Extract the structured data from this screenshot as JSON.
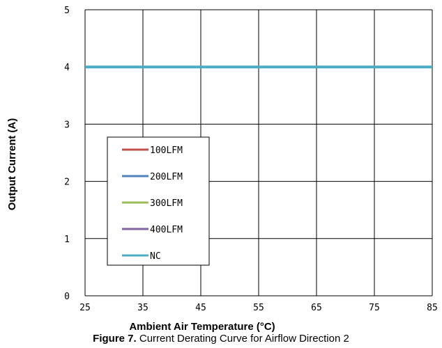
{
  "chart_data": {
    "type": "line",
    "xlabel": "Ambient Air Temperature (°C)",
    "ylabel": "Output Current (A)",
    "xlim": [
      25,
      85
    ],
    "ylim": [
      0,
      5
    ],
    "x_ticks": [
      "25",
      "35",
      "45",
      "55",
      "65",
      "75",
      "85"
    ],
    "y_ticks": [
      "0",
      "1",
      "2",
      "3",
      "4",
      "5"
    ],
    "grid": true,
    "legend_position": "left",
    "series": [
      {
        "name": "100LFM",
        "color": "#c0504d",
        "x": [],
        "y": []
      },
      {
        "name": "200LFM",
        "color": "#4f81bd",
        "x": [],
        "y": []
      },
      {
        "name": "300LFM",
        "color": "#9bbb59",
        "x": [],
        "y": []
      },
      {
        "name": "400LFM",
        "color": "#8064a2",
        "x": [],
        "y": []
      },
      {
        "name": "NC",
        "color": "#4bacc6",
        "x": [
          25,
          85
        ],
        "y": [
          4,
          4
        ]
      }
    ]
  },
  "caption": {
    "label": "Figure 7.",
    "text": " Current Derating Curve for Airflow Direction 2"
  }
}
